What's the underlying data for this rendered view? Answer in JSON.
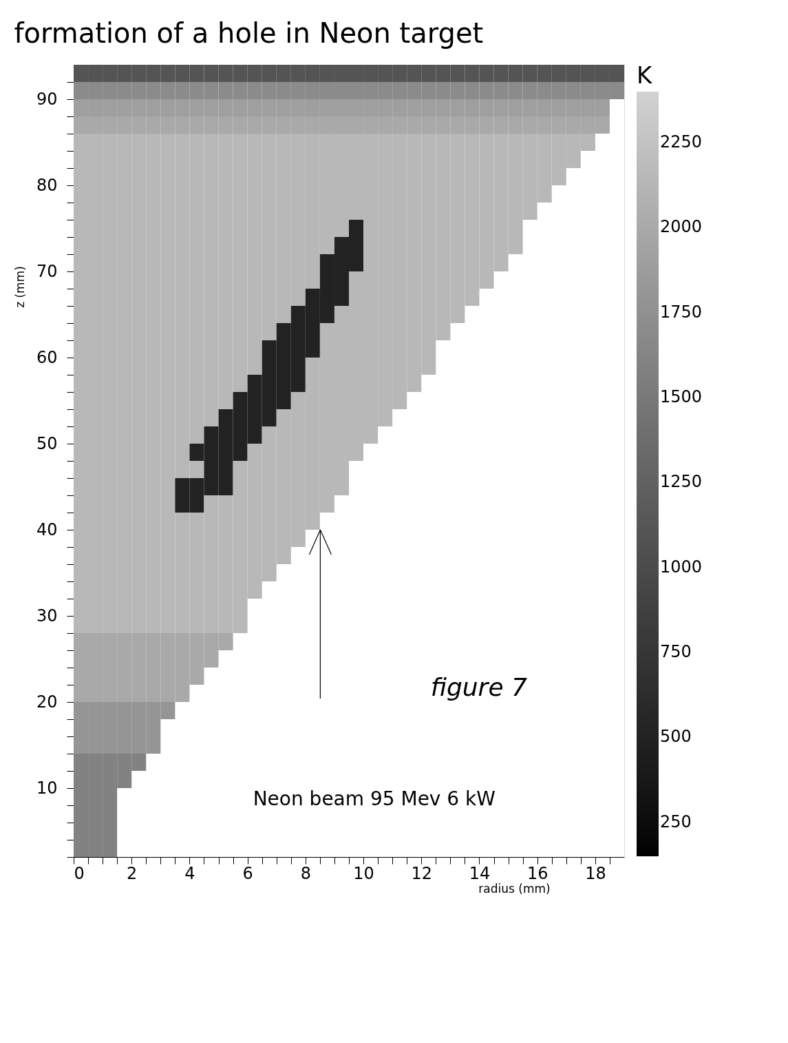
{
  "chart_data": {
    "type": "heatmap",
    "title": "formation of a hole in Neon target",
    "xlabel": "radius (mm)",
    "ylabel": "z (mm)",
    "legend_title": "K",
    "x": [
      0.25,
      0.75,
      1.25,
      1.75,
      2.25,
      2.75,
      3.25,
      3.75,
      4.25,
      4.75,
      5.25,
      5.75,
      6.25,
      6.75,
      7.25,
      7.75,
      8.25,
      8.75,
      9.25,
      9.75,
      10.25,
      10.75,
      11.25,
      11.75,
      12.25,
      12.75,
      13.25,
      13.75,
      14.25,
      14.75,
      15.25,
      15.75,
      16.25,
      16.75,
      17.25,
      17.75,
      18.25,
      18.75
    ],
    "y": [
      93,
      91,
      89,
      87,
      85,
      83,
      81,
      79,
      77,
      75,
      73,
      71,
      69,
      67,
      65,
      63,
      61,
      59,
      57,
      55,
      53,
      51,
      49,
      47,
      45,
      43,
      41,
      39,
      37,
      35,
      33,
      31,
      29,
      27,
      25,
      23,
      21,
      19,
      17,
      15,
      13,
      11,
      9,
      7,
      5,
      3
    ],
    "cells": [
      [
        1100,
        1100,
        1100,
        1100,
        1100,
        1100,
        1100,
        1100,
        1100,
        1100,
        1100,
        1100,
        1100,
        1100,
        1100,
        1100,
        1100,
        1100,
        1100,
        1100,
        1100,
        1100,
        1100,
        1100,
        1100,
        1100,
        1100,
        1100,
        1100,
        1100,
        1100,
        1100,
        1100,
        1100,
        1100,
        1100,
        1100,
        1100
      ],
      [
        1700,
        1700,
        1700,
        1700,
        1700,
        1700,
        1700,
        1700,
        1700,
        1700,
        1700,
        1700,
        1700,
        1700,
        1700,
        1700,
        1700,
        1700,
        1700,
        1700,
        1700,
        1700,
        1700,
        1700,
        1700,
        1700,
        1700,
        1700,
        1700,
        1700,
        1700,
        1700,
        1700,
        1700,
        1700,
        1700,
        1700,
        1700
      ],
      [
        1900,
        1900,
        1900,
        1900,
        1900,
        1900,
        1900,
        1900,
        1900,
        1900,
        1900,
        1900,
        1900,
        1900,
        1900,
        1900,
        1900,
        1900,
        1900,
        1900,
        1900,
        1900,
        1900,
        1900,
        1900,
        1900,
        1900,
        1900,
        1900,
        1900,
        1900,
        1900,
        1900,
        1900,
        1900,
        1900,
        1900,
        null
      ],
      [
        2000,
        2000,
        2000,
        2000,
        2000,
        2000,
        2000,
        2000,
        2000,
        2000,
        2000,
        2000,
        2000,
        2000,
        2000,
        2000,
        2000,
        2000,
        2000,
        2000,
        2000,
        2000,
        2000,
        2000,
        2000,
        2000,
        2000,
        2000,
        2000,
        2000,
        2000,
        2000,
        2000,
        2000,
        2000,
        2000,
        2000,
        null
      ],
      [
        2150,
        2150,
        2150,
        2150,
        2150,
        2150,
        2150,
        2150,
        2150,
        2150,
        2150,
        2150,
        2150,
        2150,
        2150,
        2150,
        2150,
        2150,
        2150,
        2150,
        2150,
        2150,
        2150,
        2150,
        2150,
        2150,
        2150,
        2150,
        2150,
        2150,
        2150,
        2150,
        2150,
        2150,
        2150,
        2150,
        null,
        null
      ],
      [
        2150,
        2150,
        2150,
        2150,
        2150,
        2150,
        2150,
        2150,
        2150,
        2150,
        2150,
        2150,
        2150,
        2150,
        2150,
        2150,
        2150,
        2150,
        2150,
        2150,
        2150,
        2150,
        2150,
        2150,
        2150,
        2150,
        2150,
        2150,
        2150,
        2150,
        2150,
        2150,
        2150,
        2150,
        2150,
        null,
        null,
        null
      ],
      [
        2150,
        2150,
        2150,
        2150,
        2150,
        2150,
        2150,
        2150,
        2150,
        2150,
        2150,
        2150,
        2150,
        2150,
        2150,
        2150,
        2150,
        2150,
        2150,
        2150,
        2150,
        2150,
        2150,
        2150,
        2150,
        2150,
        2150,
        2150,
        2150,
        2150,
        2150,
        2150,
        2150,
        2150,
        null,
        null,
        null,
        null
      ],
      [
        2150,
        2150,
        2150,
        2150,
        2150,
        2150,
        2150,
        2150,
        2150,
        2150,
        2150,
        2150,
        2150,
        2150,
        2150,
        2150,
        2150,
        2150,
        2150,
        2150,
        2150,
        2150,
        2150,
        2150,
        2150,
        2150,
        2150,
        2150,
        2150,
        2150,
        2150,
        2150,
        2150,
        null,
        null,
        null,
        null,
        null
      ],
      [
        2150,
        2150,
        2150,
        2150,
        2150,
        2150,
        2150,
        2150,
        2150,
        2150,
        2150,
        2150,
        2150,
        2150,
        2150,
        2150,
        2150,
        2150,
        2150,
        2150,
        2150,
        2150,
        2150,
        2150,
        2150,
        2150,
        2150,
        2150,
        2150,
        2150,
        2150,
        2150,
        null,
        null,
        null,
        null,
        null,
        null
      ],
      [
        2150,
        2150,
        2150,
        2150,
        2150,
        2150,
        2150,
        2150,
        2150,
        2150,
        2150,
        2150,
        2150,
        2150,
        2150,
        2150,
        2150,
        2150,
        2150,
        500,
        2150,
        2150,
        2150,
        2150,
        2150,
        2150,
        2150,
        2150,
        2150,
        2150,
        2150,
        null,
        null,
        null,
        null,
        null,
        null,
        null
      ],
      [
        2150,
        2150,
        2150,
        2150,
        2150,
        2150,
        2150,
        2150,
        2150,
        2150,
        2150,
        2150,
        2150,
        2150,
        2150,
        2150,
        2150,
        2150,
        500,
        500,
        2150,
        2150,
        2150,
        2150,
        2150,
        2150,
        2150,
        2150,
        2150,
        2150,
        2150,
        null,
        null,
        null,
        null,
        null,
        null,
        null
      ],
      [
        2150,
        2150,
        2150,
        2150,
        2150,
        2150,
        2150,
        2150,
        2150,
        2150,
        2150,
        2150,
        2150,
        2150,
        2150,
        2150,
        2150,
        500,
        500,
        500,
        2150,
        2150,
        2150,
        2150,
        2150,
        2150,
        2150,
        2150,
        2150,
        2150,
        null,
        null,
        null,
        null,
        null,
        null,
        null,
        null
      ],
      [
        2150,
        2150,
        2150,
        2150,
        2150,
        2150,
        2150,
        2150,
        2150,
        2150,
        2150,
        2150,
        2150,
        2150,
        2150,
        2150,
        2150,
        500,
        500,
        2150,
        2150,
        2150,
        2150,
        2150,
        2150,
        2150,
        2150,
        2150,
        2150,
        null,
        null,
        null,
        null,
        null,
        null,
        null,
        null,
        null
      ],
      [
        2150,
        2150,
        2150,
        2150,
        2150,
        2150,
        2150,
        2150,
        2150,
        2150,
        2150,
        2150,
        2150,
        2150,
        2150,
        2150,
        500,
        500,
        500,
        2150,
        2150,
        2150,
        2150,
        2150,
        2150,
        2150,
        2150,
        2150,
        null,
        null,
        null,
        null,
        null,
        null,
        null,
        null,
        null,
        null
      ],
      [
        2150,
        2150,
        2150,
        2150,
        2150,
        2150,
        2150,
        2150,
        2150,
        2150,
        2150,
        2150,
        2150,
        2150,
        2150,
        500,
        500,
        500,
        2150,
        2150,
        2150,
        2150,
        2150,
        2150,
        2150,
        2150,
        2150,
        null,
        null,
        null,
        null,
        null,
        null,
        null,
        null,
        null,
        null,
        null
      ],
      [
        2150,
        2150,
        2150,
        2150,
        2150,
        2150,
        2150,
        2150,
        2150,
        2150,
        2150,
        2150,
        2150,
        2150,
        500,
        500,
        500,
        2150,
        2150,
        2150,
        2150,
        2150,
        2150,
        2150,
        2150,
        2150,
        null,
        null,
        null,
        null,
        null,
        null,
        null,
        null,
        null,
        null,
        null,
        null
      ],
      [
        2150,
        2150,
        2150,
        2150,
        2150,
        2150,
        2150,
        2150,
        2150,
        2150,
        2150,
        2150,
        2150,
        500,
        500,
        500,
        500,
        2150,
        2150,
        2150,
        2150,
        2150,
        2150,
        2150,
        2150,
        null,
        null,
        null,
        null,
        null,
        null,
        null,
        null,
        null,
        null,
        null,
        null,
        null
      ],
      [
        2150,
        2150,
        2150,
        2150,
        2150,
        2150,
        2150,
        2150,
        2150,
        2150,
        2150,
        2150,
        2150,
        500,
        500,
        500,
        2150,
        2150,
        2150,
        2150,
        2150,
        2150,
        2150,
        2150,
        2150,
        null,
        null,
        null,
        null,
        null,
        null,
        null,
        null,
        null,
        null,
        null,
        null,
        null
      ],
      [
        2150,
        2150,
        2150,
        2150,
        2150,
        2150,
        2150,
        2150,
        2150,
        2150,
        2150,
        2150,
        500,
        500,
        500,
        500,
        2150,
        2150,
        2150,
        2150,
        2150,
        2150,
        2150,
        2150,
        null,
        null,
        null,
        null,
        null,
        null,
        null,
        null,
        null,
        null,
        null,
        null,
        null,
        null
      ],
      [
        2150,
        2150,
        2150,
        2150,
        2150,
        2150,
        2150,
        2150,
        2150,
        2150,
        2150,
        500,
        500,
        500,
        500,
        2150,
        2150,
        2150,
        2150,
        2150,
        2150,
        2150,
        2150,
        null,
        null,
        null,
        null,
        null,
        null,
        null,
        null,
        null,
        null,
        null,
        null,
        null,
        null,
        null
      ],
      [
        2150,
        2150,
        2150,
        2150,
        2150,
        2150,
        2150,
        2150,
        2150,
        2150,
        500,
        500,
        500,
        500,
        2150,
        2150,
        2150,
        2150,
        2150,
        2150,
        2150,
        2150,
        null,
        null,
        null,
        null,
        null,
        null,
        null,
        null,
        null,
        null,
        null,
        null,
        null,
        null,
        null,
        null
      ],
      [
        2150,
        2150,
        2150,
        2150,
        2150,
        2150,
        2150,
        2150,
        2150,
        500,
        500,
        500,
        500,
        2150,
        2150,
        2150,
        2150,
        2150,
        2150,
        2150,
        2150,
        null,
        null,
        null,
        null,
        null,
        null,
        null,
        null,
        null,
        null,
        null,
        null,
        null,
        null,
        null,
        null,
        null
      ],
      [
        2150,
        2150,
        2150,
        2150,
        2150,
        2150,
        2150,
        2150,
        500,
        500,
        500,
        500,
        2150,
        2150,
        2150,
        2150,
        2150,
        2150,
        2150,
        2150,
        null,
        null,
        null,
        null,
        null,
        null,
        null,
        null,
        null,
        null,
        null,
        null,
        null,
        null,
        null,
        null,
        null,
        null
      ],
      [
        2150,
        2150,
        2150,
        2150,
        2150,
        2150,
        2150,
        2150,
        2150,
        500,
        500,
        2150,
        2150,
        2150,
        2150,
        2150,
        2150,
        2150,
        2150,
        null,
        null,
        null,
        null,
        null,
        null,
        null,
        null,
        null,
        null,
        null,
        null,
        null,
        null,
        null,
        null,
        null,
        null,
        null
      ],
      [
        2150,
        2150,
        2150,
        2150,
        2150,
        2150,
        2150,
        500,
        500,
        500,
        500,
        2150,
        2150,
        2150,
        2150,
        2150,
        2150,
        2150,
        2150,
        null,
        null,
        null,
        null,
        null,
        null,
        null,
        null,
        null,
        null,
        null,
        null,
        null,
        null,
        null,
        null,
        null,
        null,
        null
      ],
      [
        2150,
        2150,
        2150,
        2150,
        2150,
        2150,
        2150,
        500,
        500,
        2150,
        2150,
        2150,
        2150,
        2150,
        2150,
        2150,
        2150,
        2150,
        null,
        null,
        null,
        null,
        null,
        null,
        null,
        null,
        null,
        null,
        null,
        null,
        null,
        null,
        null,
        null,
        null,
        null,
        null,
        null
      ],
      [
        2150,
        2150,
        2150,
        2150,
        2150,
        2150,
        2150,
        2150,
        2150,
        2150,
        2150,
        2150,
        2150,
        2150,
        2150,
        2150,
        2150,
        null,
        null,
        null,
        null,
        null,
        null,
        null,
        null,
        null,
        null,
        null,
        null,
        null,
        null,
        null,
        null,
        null,
        null,
        null,
        null,
        null
      ],
      [
        2150,
        2150,
        2150,
        2150,
        2150,
        2150,
        2150,
        2150,
        2150,
        2150,
        2150,
        2150,
        2150,
        2150,
        2150,
        2150,
        null,
        null,
        null,
        null,
        null,
        null,
        null,
        null,
        null,
        null,
        null,
        null,
        null,
        null,
        null,
        null,
        null,
        null,
        null,
        null,
        null,
        null
      ],
      [
        2150,
        2150,
        2150,
        2150,
        2150,
        2150,
        2150,
        2150,
        2150,
        2150,
        2150,
        2150,
        2150,
        2150,
        2150,
        null,
        null,
        null,
        null,
        null,
        null,
        null,
        null,
        null,
        null,
        null,
        null,
        null,
        null,
        null,
        null,
        null,
        null,
        null,
        null,
        null,
        null,
        null
      ],
      [
        2150,
        2150,
        2150,
        2150,
        2150,
        2150,
        2150,
        2150,
        2150,
        2150,
        2150,
        2150,
        2150,
        2150,
        null,
        null,
        null,
        null,
        null,
        null,
        null,
        null,
        null,
        null,
        null,
        null,
        null,
        null,
        null,
        null,
        null,
        null,
        null,
        null,
        null,
        null,
        null,
        null
      ],
      [
        2150,
        2150,
        2150,
        2150,
        2150,
        2150,
        2150,
        2150,
        2150,
        2150,
        2150,
        2150,
        2150,
        null,
        null,
        null,
        null,
        null,
        null,
        null,
        null,
        null,
        null,
        null,
        null,
        null,
        null,
        null,
        null,
        null,
        null,
        null,
        null,
        null,
        null,
        null,
        null,
        null
      ],
      [
        2150,
        2150,
        2150,
        2150,
        2150,
        2150,
        2150,
        2150,
        2150,
        2150,
        2150,
        2150,
        null,
        null,
        null,
        null,
        null,
        null,
        null,
        null,
        null,
        null,
        null,
        null,
        null,
        null,
        null,
        null,
        null,
        null,
        null,
        null,
        null,
        null,
        null,
        null,
        null,
        null
      ],
      [
        2150,
        2150,
        2150,
        2150,
        2150,
        2150,
        2150,
        2150,
        2150,
        2150,
        2150,
        2150,
        null,
        null,
        null,
        null,
        null,
        null,
        null,
        null,
        null,
        null,
        null,
        null,
        null,
        null,
        null,
        null,
        null,
        null,
        null,
        null,
        null,
        null,
        null,
        null,
        null,
        null
      ],
      [
        2000,
        2000,
        2000,
        2000,
        2000,
        2000,
        2000,
        2000,
        2000,
        2000,
        2000,
        null,
        null,
        null,
        null,
        null,
        null,
        null,
        null,
        null,
        null,
        null,
        null,
        null,
        null,
        null,
        null,
        null,
        null,
        null,
        null,
        null,
        null,
        null,
        null,
        null,
        null,
        null
      ],
      [
        2000,
        2000,
        2000,
        2000,
        2000,
        2000,
        2000,
        2000,
        2000,
        2000,
        null,
        null,
        null,
        null,
        null,
        null,
        null,
        null,
        null,
        null,
        null,
        null,
        null,
        null,
        null,
        null,
        null,
        null,
        null,
        null,
        null,
        null,
        null,
        null,
        null,
        null,
        null,
        null
      ],
      [
        2000,
        2000,
        2000,
        2000,
        2000,
        2000,
        2000,
        2000,
        2000,
        null,
        null,
        null,
        null,
        null,
        null,
        null,
        null,
        null,
        null,
        null,
        null,
        null,
        null,
        null,
        null,
        null,
        null,
        null,
        null,
        null,
        null,
        null,
        null,
        null,
        null,
        null,
        null,
        null
      ],
      [
        2000,
        2000,
        2000,
        2000,
        2000,
        2000,
        2000,
        2000,
        null,
        null,
        null,
        null,
        null,
        null,
        null,
        null,
        null,
        null,
        null,
        null,
        null,
        null,
        null,
        null,
        null,
        null,
        null,
        null,
        null,
        null,
        null,
        null,
        null,
        null,
        null,
        null,
        null,
        null
      ],
      [
        1800,
        1800,
        1800,
        1800,
        1800,
        1800,
        1800,
        null,
        null,
        null,
        null,
        null,
        null,
        null,
        null,
        null,
        null,
        null,
        null,
        null,
        null,
        null,
        null,
        null,
        null,
        null,
        null,
        null,
        null,
        null,
        null,
        null,
        null,
        null,
        null,
        null,
        null,
        null
      ],
      [
        1800,
        1800,
        1800,
        1800,
        1800,
        1800,
        null,
        null,
        null,
        null,
        null,
        null,
        null,
        null,
        null,
        null,
        null,
        null,
        null,
        null,
        null,
        null,
        null,
        null,
        null,
        null,
        null,
        null,
        null,
        null,
        null,
        null,
        null,
        null,
        null,
        null,
        null,
        null
      ],
      [
        1800,
        1800,
        1800,
        1800,
        1800,
        1800,
        null,
        null,
        null,
        null,
        null,
        null,
        null,
        null,
        null,
        null,
        null,
        null,
        null,
        null,
        null,
        null,
        null,
        null,
        null,
        null,
        null,
        null,
        null,
        null,
        null,
        null,
        null,
        null,
        null,
        null,
        null,
        null
      ],
      [
        1600,
        1600,
        1600,
        1600,
        1600,
        null,
        null,
        null,
        null,
        null,
        null,
        null,
        null,
        null,
        null,
        null,
        null,
        null,
        null,
        null,
        null,
        null,
        null,
        null,
        null,
        null,
        null,
        null,
        null,
        null,
        null,
        null,
        null,
        null,
        null,
        null,
        null,
        null
      ],
      [
        1600,
        1600,
        1600,
        1600,
        null,
        null,
        null,
        null,
        null,
        null,
        null,
        null,
        null,
        null,
        null,
        null,
        null,
        null,
        null,
        null,
        null,
        null,
        null,
        null,
        null,
        null,
        null,
        null,
        null,
        null,
        null,
        null,
        null,
        null,
        null,
        null,
        null,
        null
      ],
      [
        1600,
        1600,
        1600,
        null,
        null,
        null,
        null,
        null,
        null,
        null,
        null,
        null,
        null,
        null,
        null,
        null,
        null,
        null,
        null,
        null,
        null,
        null,
        null,
        null,
        null,
        null,
        null,
        null,
        null,
        null,
        null,
        null,
        null,
        null,
        null,
        null,
        null,
        null
      ],
      [
        1600,
        1600,
        1600,
        null,
        null,
        null,
        null,
        null,
        null,
        null,
        null,
        null,
        null,
        null,
        null,
        null,
        null,
        null,
        null,
        null,
        null,
        null,
        null,
        null,
        null,
        null,
        null,
        null,
        null,
        null,
        null,
        null,
        null,
        null,
        null,
        null,
        null,
        null
      ],
      [
        1600,
        1600,
        1600,
        null,
        null,
        null,
        null,
        null,
        null,
        null,
        null,
        null,
        null,
        null,
        null,
        null,
        null,
        null,
        null,
        null,
        null,
        null,
        null,
        null,
        null,
        null,
        null,
        null,
        null,
        null,
        null,
        null,
        null,
        null,
        null,
        null,
        null,
        null
      ],
      [
        1600,
        1600,
        1600,
        null,
        null,
        null,
        null,
        null,
        null,
        null,
        null,
        null,
        null,
        null,
        null,
        null,
        null,
        null,
        null,
        null,
        null,
        null,
        null,
        null,
        null,
        null,
        null,
        null,
        null,
        null,
        null,
        null,
        null,
        null,
        null,
        null,
        null,
        null
      ]
    ],
    "xlim": [
      0,
      19
    ],
    "ylim": [
      2,
      94
    ],
    "xticks": [
      0,
      {
        "value": 0.5,
        "label": null
      },
      {
        "value": 1,
        "label": null
      },
      {
        "value": 1.5,
        "label": null
      },
      2,
      {
        "value": 2.5,
        "label": null
      },
      {
        "value": 3,
        "label": null
      },
      {
        "value": 3.5,
        "label": null
      },
      4,
      {
        "value": 4.5,
        "label": null
      },
      {
        "value": 5,
        "label": null
      },
      {
        "value": 5.5,
        "label": null
      },
      6,
      {
        "value": 6.5,
        "label": null
      },
      {
        "value": 7,
        "label": null
      },
      {
        "value": 7.5,
        "label": null
      },
      8,
      {
        "value": 8.5,
        "label": null
      },
      {
        "value": 9,
        "label": null
      },
      {
        "value": 9.5,
        "label": null
      },
      10,
      {
        "value": 10.5,
        "label": null
      },
      {
        "value": 11,
        "label": null
      },
      {
        "value": 11.5,
        "label": null
      },
      12,
      {
        "value": 12.5,
        "label": null
      },
      {
        "value": 13,
        "label": null
      },
      {
        "value": 13.5,
        "label": null
      },
      14,
      {
        "value": 14.5,
        "label": null
      },
      {
        "value": 15,
        "label": null
      },
      {
        "value": 15.5,
        "label": null
      },
      16,
      {
        "value": 16.5,
        "label": null
      },
      {
        "value": 17,
        "label": null
      },
      {
        "value": 17.5,
        "label": null
      },
      18,
      {
        "value": 18.5,
        "label": null
      }
    ],
    "yticks": [
      {
        "value": 2,
        "label": null
      },
      {
        "value": 4,
        "label": null
      },
      {
        "value": 6,
        "label": null
      },
      {
        "value": 8,
        "label": null
      },
      10,
      {
        "value": 12,
        "label": null
      },
      {
        "value": 14,
        "label": null
      },
      {
        "value": 16,
        "label": null
      },
      {
        "value": 18,
        "label": null
      },
      20,
      {
        "value": 22,
        "label": null
      },
      {
        "value": 24,
        "label": null
      },
      {
        "value": 26,
        "label": null
      },
      {
        "value": 28,
        "label": null
      },
      30,
      {
        "value": 32,
        "label": null
      },
      {
        "value": 34,
        "label": null
      },
      {
        "value": 36,
        "label": null
      },
      {
        "value": 38,
        "label": null
      },
      40,
      {
        "value": 42,
        "label": null
      },
      {
        "value": 44,
        "label": null
      },
      {
        "value": 46,
        "label": null
      },
      {
        "value": 48,
        "label": null
      },
      50,
      {
        "value": 52,
        "label": null
      },
      {
        "value": 54,
        "label": null
      },
      {
        "value": 56,
        "label": null
      },
      {
        "value": 58,
        "label": null
      },
      60,
      {
        "value": 62,
        "label": null
      },
      {
        "value": 64,
        "label": null
      },
      {
        "value": 66,
        "label": null
      },
      {
        "value": 68,
        "label": null
      },
      70,
      {
        "value": 72,
        "label": null
      },
      {
        "value": 74,
        "label": null
      },
      {
        "value": 76,
        "label": null
      },
      {
        "value": 78,
        "label": null
      },
      80,
      {
        "value": 82,
        "label": null
      },
      {
        "value": 84,
        "label": null
      },
      {
        "value": 86,
        "label": null
      },
      {
        "value": 88,
        "label": null
      },
      90,
      {
        "value": 92,
        "label": null
      }
    ],
    "clim": [
      150,
      2400
    ],
    "cticks": [
      250,
      500,
      750,
      1000,
      1250,
      1500,
      1750,
      2000,
      2250
    ],
    "annotations": [
      "figure 7",
      "Neon beam 95 Mev 6 kW"
    ]
  }
}
